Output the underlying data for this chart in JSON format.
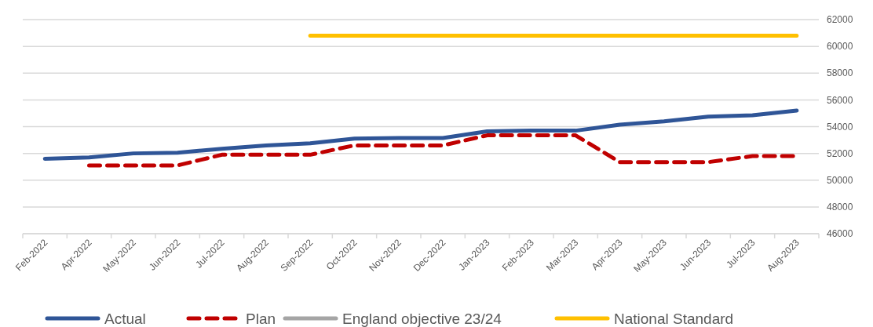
{
  "chart_data": {
    "type": "line",
    "categories": [
      "Feb-2022",
      "Apr-2022",
      "May-2022",
      "Jun-2022",
      "Jul-2022",
      "Aug-2022",
      "Sep-2022",
      "Oct-2022",
      "Nov-2022",
      "Dec-2022",
      "Jan-2023",
      "Feb-2023",
      "Mar-2023",
      "Apr-2023",
      "May-2023",
      "Jun-2023",
      "Jul-2023",
      "Aug-2023"
    ],
    "series": [
      {
        "name": "Actual",
        "color": "#2f5597",
        "values": [
          51600,
          51700,
          52000,
          52050,
          52350,
          52600,
          52750,
          53100,
          53150,
          53150,
          53650,
          53700,
          53700,
          54150,
          54400,
          54750,
          54850,
          55200
        ]
      },
      {
        "name": "Plan",
        "color": "#c00000",
        "line_style": "dashed",
        "values": [
          null,
          51100,
          51100,
          51100,
          51900,
          51900,
          51900,
          52600,
          52600,
          52600,
          53350,
          53350,
          53350,
          51350,
          51350,
          51350,
          51800,
          51800
        ]
      },
      {
        "name": "England objective 23/24",
        "color": "#a5a5a5",
        "values": [
          null,
          null,
          null,
          null,
          null,
          null,
          null,
          null,
          null,
          null,
          null,
          null,
          null,
          null,
          null,
          null,
          null,
          null
        ]
      },
      {
        "name": "National Standard",
        "color": "#ffc000",
        "values": [
          null,
          null,
          null,
          null,
          null,
          null,
          60800,
          60800,
          60800,
          60800,
          60800,
          60800,
          60800,
          60800,
          60800,
          60800,
          60800,
          60800
        ]
      }
    ],
    "ylim": [
      46000,
      62000
    ],
    "yticks": [
      46000,
      48000,
      50000,
      52000,
      54000,
      56000,
      58000,
      60000,
      62000
    ],
    "grid": "y",
    "legend": "bottom",
    "line_style": "solid",
    "marker": "none"
  }
}
